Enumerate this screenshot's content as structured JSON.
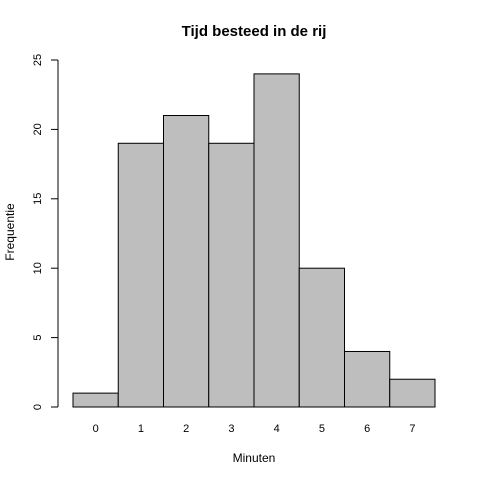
{
  "chart_data": {
    "type": "bar",
    "title": "Tijd besteed in de rij",
    "xlabel": "Minuten",
    "ylabel": "Frequentie",
    "categories": [
      "0",
      "1",
      "2",
      "3",
      "4",
      "5",
      "6",
      "7"
    ],
    "values": [
      1,
      19,
      21,
      19,
      24,
      10,
      4,
      2
    ],
    "ylim": [
      0,
      25
    ],
    "yticks": [
      0,
      5,
      10,
      15,
      20,
      25
    ],
    "grid": false,
    "legend": "none",
    "bar_color": "#bebebe",
    "edge_color": "#000000"
  }
}
